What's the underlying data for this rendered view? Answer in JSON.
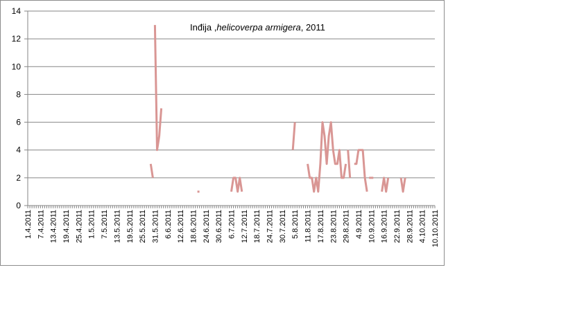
{
  "chart_data": {
    "type": "line",
    "title": {
      "prefix": "Inđija ,",
      "species": "helicoverpa armigera",
      "suffix": ", 2011"
    },
    "xlabel": "",
    "ylabel": "",
    "ylim": [
      0,
      14
    ],
    "yticks": [
      0,
      2,
      4,
      6,
      8,
      10,
      12,
      14
    ],
    "xlim": [
      "2011-04-01",
      "2011-10-10"
    ],
    "xtick_labels": [
      "1.4.2011",
      "7.4.2011",
      "13.4.2011",
      "19.4.2011",
      "25.4.2011",
      "1.5.2011",
      "7.5.2011",
      "13.5.2011",
      "19.5.2011",
      "25.5.2011",
      "31.5.2011",
      "6.6.2011",
      "12.6.2011",
      "18.6.2011",
      "24.6.2011",
      "30.6.2011",
      "6.7.2011",
      "12.7.2011",
      "18.7.2011",
      "24.7.2011",
      "30.7.2011",
      "5.8.2011",
      "11.8.2011",
      "17.8.2011",
      "23.8.2011",
      "29.8.2011",
      "4.9.2011",
      "10.9.2011",
      "16.9.2011",
      "22.9.2011",
      "28.9.2011",
      "4.10.2011",
      "10.10.2011"
    ],
    "grid": true,
    "legend": "none",
    "series": [
      {
        "color": "#d99694",
        "segments": [
          [
            [
              "2011-05-29",
              3
            ],
            [
              "2011-05-30",
              2
            ]
          ],
          [
            [
              "2011-05-31",
              13
            ],
            [
              "2011-06-01",
              4
            ],
            [
              "2011-06-02",
              5
            ],
            [
              "2011-06-03",
              7
            ]
          ],
          [
            [
              "2011-06-20",
              1
            ],
            [
              "2011-06-21",
              1
            ]
          ],
          [
            [
              "2011-07-06",
              1
            ],
            [
              "2011-07-07",
              2
            ],
            [
              "2011-07-08",
              2
            ],
            [
              "2011-07-09",
              1
            ],
            [
              "2011-07-10",
              2
            ],
            [
              "2011-07-11",
              1
            ]
          ],
          [
            [
              "2011-08-04",
              4
            ],
            [
              "2011-08-05",
              6
            ]
          ],
          [
            [
              "2011-08-11",
              3
            ],
            [
              "2011-08-12",
              2
            ],
            [
              "2011-08-13",
              2
            ],
            [
              "2011-08-14",
              1
            ],
            [
              "2011-08-15",
              2
            ],
            [
              "2011-08-16",
              1
            ],
            [
              "2011-08-17",
              3
            ],
            [
              "2011-08-18",
              6
            ],
            [
              "2011-08-19",
              5
            ],
            [
              "2011-08-20",
              3
            ],
            [
              "2011-08-21",
              5
            ],
            [
              "2011-08-22",
              6
            ],
            [
              "2011-08-23",
              4
            ],
            [
              "2011-08-24",
              3
            ],
            [
              "2011-08-25",
              3
            ],
            [
              "2011-08-26",
              4
            ],
            [
              "2011-08-27",
              2
            ],
            [
              "2011-08-28",
              2
            ],
            [
              "2011-08-29",
              3
            ]
          ],
          [
            [
              "2011-08-30",
              4
            ],
            [
              "2011-08-31",
              2
            ]
          ],
          [
            [
              "2011-09-02",
              3
            ],
            [
              "2011-09-03",
              3
            ],
            [
              "2011-09-04",
              4
            ],
            [
              "2011-09-05",
              4
            ],
            [
              "2011-09-06",
              4
            ],
            [
              "2011-09-07",
              2
            ],
            [
              "2011-09-08",
              1
            ]
          ],
          [
            [
              "2011-09-09",
              2
            ],
            [
              "2011-09-10",
              2
            ],
            [
              "2011-09-11",
              2
            ]
          ],
          [
            [
              "2011-09-15",
              1
            ],
            [
              "2011-09-16",
              2
            ],
            [
              "2011-09-17",
              1
            ],
            [
              "2011-09-18",
              2
            ]
          ],
          [
            [
              "2011-09-24",
              2
            ],
            [
              "2011-09-25",
              1
            ],
            [
              "2011-09-26",
              2
            ]
          ]
        ]
      }
    ]
  }
}
